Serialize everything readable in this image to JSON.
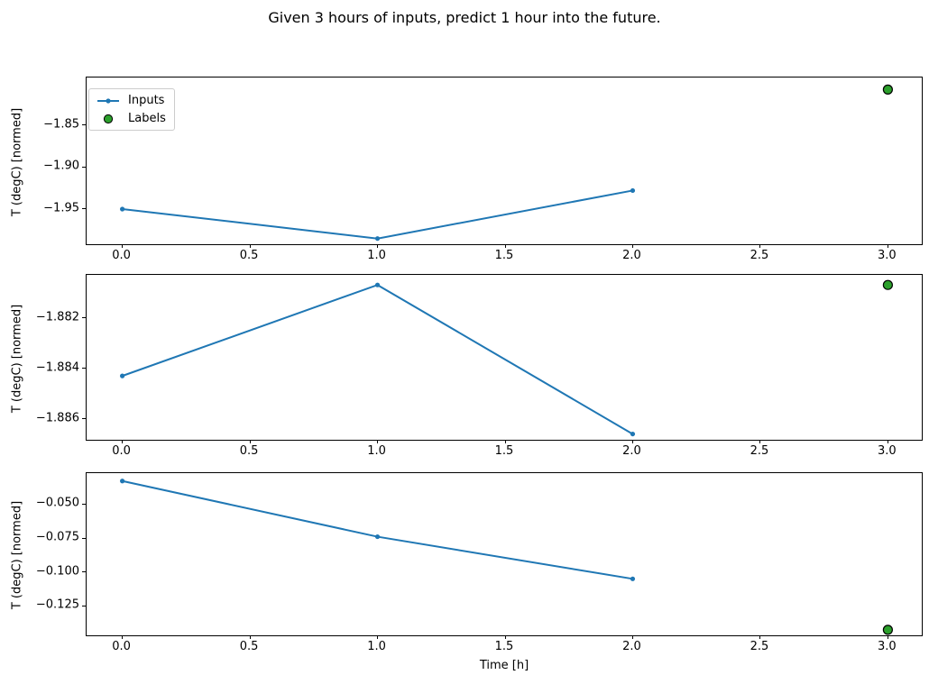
{
  "suptitle": "Given 3 hours of inputs, predict 1 hour into the future.",
  "xlabel": "Time [h]",
  "legend": {
    "inputs_label": "Inputs",
    "labels_label": "Labels"
  },
  "colors": {
    "inputs_line": "#1f77b4",
    "labels_marker": "#2ca02c",
    "labels_marker_edge": "#000000"
  },
  "chart_data": [
    {
      "type": "line",
      "ylabel": "T (degC) [normed]",
      "x": [
        0,
        1,
        2
      ],
      "series": [
        {
          "name": "Inputs",
          "values": [
            -1.95,
            -1.985,
            -1.928
          ]
        }
      ],
      "label_point": {
        "name": "Labels",
        "x": 3,
        "y": -1.808
      },
      "xlim": [
        -0.14,
        3.14
      ],
      "ylim": [
        -1.9939,
        -1.7937
      ],
      "grid": false,
      "legend": true,
      "legend_position": "upper left",
      "xticks": [
        {
          "v": 0.0,
          "label": "0.0"
        },
        {
          "v": 0.5,
          "label": "0.5"
        },
        {
          "v": 1.0,
          "label": "1.0"
        },
        {
          "v": 1.5,
          "label": "1.5"
        },
        {
          "v": 2.0,
          "label": "2.0"
        },
        {
          "v": 2.5,
          "label": "2.5"
        },
        {
          "v": 3.0,
          "label": "3.0"
        }
      ],
      "yticks": [
        {
          "v": -1.85,
          "label": "−1.85"
        },
        {
          "v": -1.9,
          "label": "−1.90"
        },
        {
          "v": -1.95,
          "label": "−1.95"
        }
      ]
    },
    {
      "type": "line",
      "ylabel": "T (degC) [normed]",
      "x": [
        0,
        1,
        2
      ],
      "series": [
        {
          "name": "Inputs",
          "values": [
            -1.8843,
            -1.8807,
            -1.8866
          ]
        }
      ],
      "label_point": {
        "name": "Labels",
        "x": 3,
        "y": -1.8807
      },
      "xlim": [
        -0.14,
        3.14
      ],
      "ylim": [
        -1.8869,
        -1.8803
      ],
      "grid": false,
      "legend": false,
      "xticks": [
        {
          "v": 0.0,
          "label": "0.0"
        },
        {
          "v": 0.5,
          "label": "0.5"
        },
        {
          "v": 1.0,
          "label": "1.0"
        },
        {
          "v": 1.5,
          "label": "1.5"
        },
        {
          "v": 2.0,
          "label": "2.0"
        },
        {
          "v": 2.5,
          "label": "2.5"
        },
        {
          "v": 3.0,
          "label": "3.0"
        }
      ],
      "yticks": [
        {
          "v": -1.882,
          "label": "−1.882"
        },
        {
          "v": -1.884,
          "label": "−1.884"
        },
        {
          "v": -1.886,
          "label": "−1.886"
        }
      ]
    },
    {
      "type": "line",
      "ylabel": "T (degC) [normed]",
      "x": [
        0,
        1,
        2
      ],
      "series": [
        {
          "name": "Inputs",
          "values": [
            -0.033,
            -0.074,
            -0.105
          ]
        }
      ],
      "label_point": {
        "name": "Labels",
        "x": 3,
        "y": -0.1425
      },
      "xlim": [
        -0.14,
        3.14
      ],
      "ylim": [
        -0.1479,
        -0.0272
      ],
      "grid": false,
      "legend": false,
      "xticks": [
        {
          "v": 0.0,
          "label": "0.0"
        },
        {
          "v": 0.5,
          "label": "0.5"
        },
        {
          "v": 1.0,
          "label": "1.0"
        },
        {
          "v": 1.5,
          "label": "1.5"
        },
        {
          "v": 2.0,
          "label": "2.0"
        },
        {
          "v": 2.5,
          "label": "2.5"
        },
        {
          "v": 3.0,
          "label": "3.0"
        }
      ],
      "yticks": [
        {
          "v": -0.05,
          "label": "−0.050"
        },
        {
          "v": -0.075,
          "label": "−0.075"
        },
        {
          "v": -0.1,
          "label": "−0.100"
        },
        {
          "v": -0.125,
          "label": "−0.125"
        }
      ]
    }
  ]
}
